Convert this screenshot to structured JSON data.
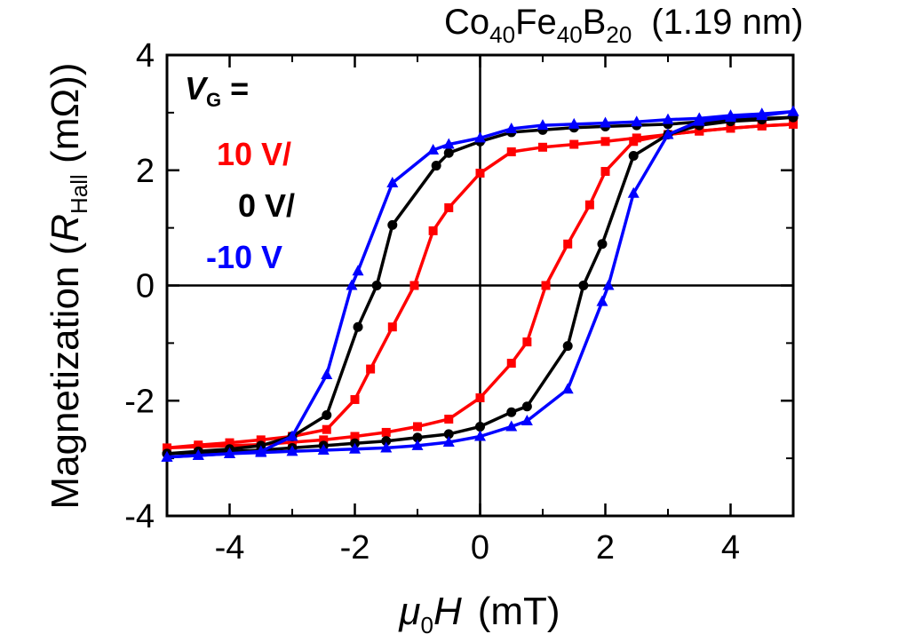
{
  "chart_data": {
    "type": "line",
    "title": {
      "base1": "Co",
      "sub1": "40",
      "base2": "Fe",
      "sub2": "40",
      "base3": "B",
      "sub3": "20",
      "suffix": "(1.19 nm)"
    },
    "xlabel": {
      "sym": "μ",
      "sub": "0",
      "var": "H",
      "unit": "(mT)"
    },
    "ylabel": {
      "prefix": "Magnetization (",
      "var": "R",
      "sub": "Hall",
      "unit": " (mΩ))"
    },
    "xlim": [
      -5,
      5
    ],
    "ylim": [
      -4,
      4
    ],
    "xticks": [
      -4,
      -2,
      0,
      2,
      4
    ],
    "yticks": [
      -4,
      -2,
      0,
      2,
      4
    ],
    "legend": {
      "title_var": "V",
      "title_sub": "G",
      "title_eq": " =",
      "placement": "top-left",
      "entries": [
        "10 V/",
        "0 V/",
        "-10 V"
      ]
    },
    "series": [
      {
        "name": "10 V",
        "color": "#ff0000",
        "marker": "square",
        "up": [
          [
            -5,
            -2.82
          ],
          [
            -4.5,
            -2.8
          ],
          [
            -4,
            -2.78
          ],
          [
            -3.5,
            -2.76
          ],
          [
            -3,
            -2.72
          ],
          [
            -2.5,
            -2.68
          ],
          [
            -2,
            -2.62
          ],
          [
            -1.5,
            -2.55
          ],
          [
            -1,
            -2.45
          ],
          [
            -0.5,
            -2.32
          ],
          [
            0,
            -1.95
          ],
          [
            0.5,
            -1.35
          ],
          [
            0.75,
            -0.98
          ],
          [
            1.05,
            0
          ],
          [
            1.4,
            0.72
          ],
          [
            1.75,
            1.4
          ],
          [
            2,
            1.98
          ],
          [
            2.45,
            2.5
          ],
          [
            3,
            2.62
          ],
          [
            3.5,
            2.68
          ],
          [
            4,
            2.73
          ],
          [
            4.5,
            2.77
          ],
          [
            5,
            2.8
          ]
        ],
        "down": [
          [
            5,
            2.8
          ],
          [
            4.5,
            2.77
          ],
          [
            4,
            2.73
          ],
          [
            3.5,
            2.68
          ],
          [
            3,
            2.62
          ],
          [
            2.5,
            2.56
          ],
          [
            2,
            2.5
          ],
          [
            1.5,
            2.45
          ],
          [
            1,
            2.4
          ],
          [
            0.5,
            2.32
          ],
          [
            0,
            1.95
          ],
          [
            -0.5,
            1.35
          ],
          [
            -0.75,
            0.95
          ],
          [
            -1.05,
            0
          ],
          [
            -1.4,
            -0.72
          ],
          [
            -1.75,
            -1.45
          ],
          [
            -2,
            -1.98
          ],
          [
            -2.45,
            -2.5
          ],
          [
            -3,
            -2.62
          ],
          [
            -3.5,
            -2.68
          ],
          [
            -4,
            -2.73
          ],
          [
            -4.5,
            -2.77
          ],
          [
            -5,
            -2.82
          ]
        ]
      },
      {
        "name": "0 V",
        "color": "#000000",
        "marker": "circle",
        "up": [
          [
            -5,
            -2.92
          ],
          [
            -4.5,
            -2.9
          ],
          [
            -4,
            -2.88
          ],
          [
            -3.5,
            -2.86
          ],
          [
            -3,
            -2.82
          ],
          [
            -2.5,
            -2.78
          ],
          [
            -2,
            -2.74
          ],
          [
            -1.5,
            -2.7
          ],
          [
            -1,
            -2.64
          ],
          [
            -0.5,
            -2.58
          ],
          [
            0,
            -2.45
          ],
          [
            0.5,
            -2.2
          ],
          [
            0.75,
            -2.1
          ],
          [
            1.4,
            -1.05
          ],
          [
            1.65,
            0
          ],
          [
            1.95,
            0.72
          ],
          [
            2.45,
            2.25
          ],
          [
            3,
            2.62
          ],
          [
            3.5,
            2.78
          ],
          [
            4,
            2.85
          ],
          [
            4.5,
            2.88
          ],
          [
            5,
            2.92
          ]
        ],
        "down": [
          [
            5,
            2.92
          ],
          [
            4.5,
            2.9
          ],
          [
            4,
            2.87
          ],
          [
            3.5,
            2.84
          ],
          [
            3,
            2.8
          ],
          [
            2.5,
            2.78
          ],
          [
            2,
            2.76
          ],
          [
            1.5,
            2.74
          ],
          [
            1,
            2.7
          ],
          [
            0.5,
            2.66
          ],
          [
            0,
            2.5
          ],
          [
            -0.5,
            2.3
          ],
          [
            -0.7,
            2.08
          ],
          [
            -1.4,
            1.05
          ],
          [
            -1.65,
            0
          ],
          [
            -1.95,
            -0.72
          ],
          [
            -2.45,
            -2.25
          ],
          [
            -3,
            -2.62
          ],
          [
            -3.5,
            -2.78
          ],
          [
            -4,
            -2.84
          ],
          [
            -4.5,
            -2.88
          ],
          [
            -5,
            -2.92
          ]
        ]
      },
      {
        "name": "-10 V",
        "color": "#0000ff",
        "marker": "triangle",
        "up": [
          [
            -5,
            -2.98
          ],
          [
            -4.5,
            -2.95
          ],
          [
            -4,
            -2.92
          ],
          [
            -3.5,
            -2.9
          ],
          [
            -3,
            -2.88
          ],
          [
            -2.5,
            -2.86
          ],
          [
            -2,
            -2.84
          ],
          [
            -1.5,
            -2.82
          ],
          [
            -1,
            -2.78
          ],
          [
            -0.5,
            -2.72
          ],
          [
            0,
            -2.62
          ],
          [
            0.5,
            -2.45
          ],
          [
            0.75,
            -2.35
          ],
          [
            1.4,
            -1.8
          ],
          [
            1.95,
            -0.28
          ],
          [
            2.05,
            0
          ],
          [
            2.45,
            1.6
          ],
          [
            3,
            2.62
          ],
          [
            3.5,
            2.85
          ],
          [
            4,
            2.92
          ],
          [
            4.5,
            2.95
          ],
          [
            5,
            3.02
          ]
        ],
        "down": [
          [
            5,
            3.02
          ],
          [
            4.5,
            2.98
          ],
          [
            4,
            2.95
          ],
          [
            3.5,
            2.9
          ],
          [
            3,
            2.88
          ],
          [
            2.5,
            2.84
          ],
          [
            2,
            2.82
          ],
          [
            1.5,
            2.8
          ],
          [
            1,
            2.78
          ],
          [
            0.5,
            2.72
          ],
          [
            0,
            2.56
          ],
          [
            -0.5,
            2.45
          ],
          [
            -0.75,
            2.35
          ],
          [
            -1.4,
            1.78
          ],
          [
            -1.95,
            0.25
          ],
          [
            -2.05,
            0
          ],
          [
            -2.45,
            -1.55
          ],
          [
            -3,
            -2.62
          ],
          [
            -3.5,
            -2.88
          ],
          [
            -4,
            -2.92
          ],
          [
            -4.5,
            -2.95
          ],
          [
            -5,
            -2.98
          ]
        ]
      }
    ]
  }
}
